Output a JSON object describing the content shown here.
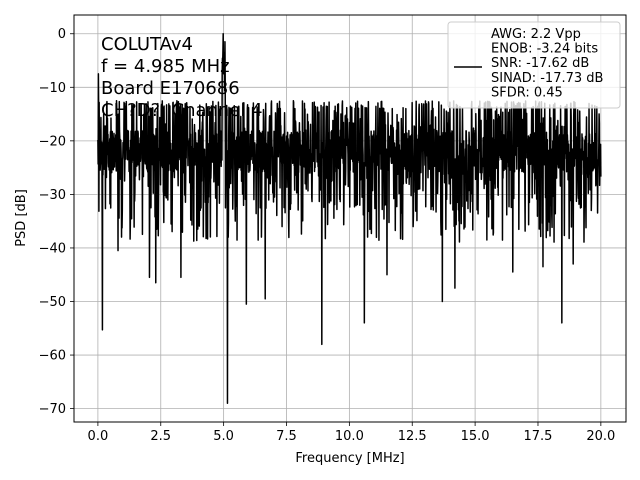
{
  "chart_data": {
    "type": "line",
    "title": "",
    "xlabel": "Frequency [MHz]",
    "ylabel": "PSD [dB]",
    "xlim": [
      -0.95,
      21.0
    ],
    "ylim": [
      -72.5,
      3.5
    ],
    "xticks": [
      0.0,
      2.5,
      5.0,
      7.5,
      10.0,
      12.5,
      15.0,
      17.5,
      20.0
    ],
    "xtick_labels": [
      "0.0",
      "2.5",
      "5.0",
      "7.5",
      "10.0",
      "12.5",
      "15.0",
      "17.5",
      "20.0"
    ],
    "yticks": [
      0,
      -10,
      -20,
      -30,
      -40,
      -50,
      -60,
      -70
    ],
    "ytick_labels": [
      "0",
      "−10",
      "−20",
      "−30",
      "−40",
      "−50",
      "−60",
      "−70"
    ],
    "grid": true,
    "line_color": "#000000",
    "noise": {
      "x_range": [
        0.0,
        20.0
      ],
      "points": 2000,
      "center_db": -22,
      "band_db": [
        -33,
        -14
      ]
    },
    "peaks": [
      {
        "x": 4.985,
        "y": 0.0
      },
      {
        "x": 5.05,
        "y": -1.5
      },
      {
        "x": 0.02,
        "y": -7.5
      }
    ],
    "dips": [
      {
        "x": 0.18,
        "y": -55.3
      },
      {
        "x": 0.8,
        "y": -40.5
      },
      {
        "x": 2.05,
        "y": -45.5
      },
      {
        "x": 2.3,
        "y": -46.5
      },
      {
        "x": 3.3,
        "y": -45.5
      },
      {
        "x": 5.15,
        "y": -69.0
      },
      {
        "x": 5.9,
        "y": -50.5
      },
      {
        "x": 6.65,
        "y": -49.5
      },
      {
        "x": 8.9,
        "y": -58.0
      },
      {
        "x": 10.6,
        "y": -54.0
      },
      {
        "x": 11.5,
        "y": -45.0
      },
      {
        "x": 13.7,
        "y": -50.0
      },
      {
        "x": 14.2,
        "y": -47.5
      },
      {
        "x": 16.5,
        "y": -44.5
      },
      {
        "x": 17.7,
        "y": -43.5
      },
      {
        "x": 18.45,
        "y": -54.0
      },
      {
        "x": 18.9,
        "y": -43.0
      }
    ],
    "annotation_lines": [
      "COLUTAv4",
      "f = 4.985 MHz",
      "Board E170686",
      "CH?D?, Channel 4"
    ],
    "legend": {
      "placement": "top-right",
      "lines": [
        "AWG: 2.2 Vpp",
        "ENOB: -3.24 bits",
        "SNR: -17.62 dB",
        "SINAD: -17.73 dB",
        "SFDR: 0.45"
      ]
    }
  }
}
